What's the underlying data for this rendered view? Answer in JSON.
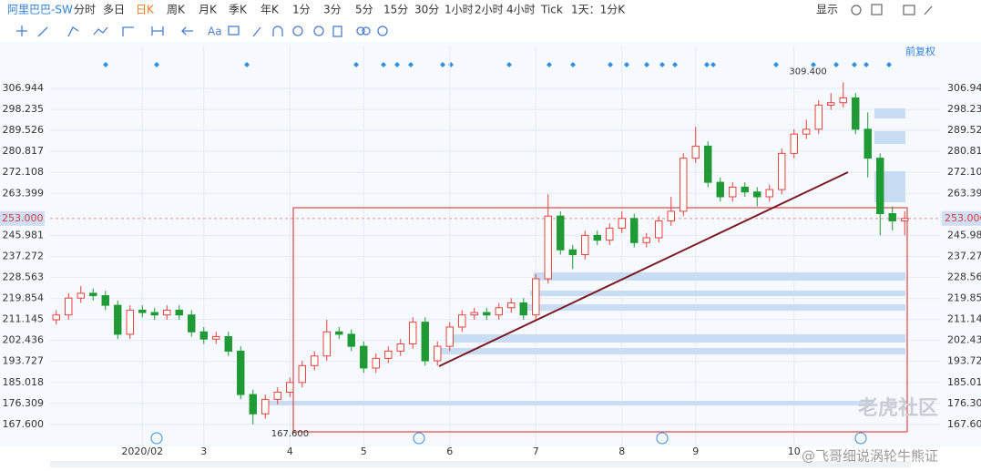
{
  "toolbar": {
    "symbol": "阿里巴巴-SW",
    "periods": [
      "分时",
      "多日",
      "日K",
      "周K",
      "月K",
      "季K",
      "年K",
      "1分",
      "3分",
      "5分",
      "15分",
      "30分",
      "1小时",
      "2小时",
      "4小时",
      "Tick"
    ],
    "active": "日K",
    "range": "1天：1分K",
    "display": "显示"
  },
  "adjust": "前复权",
  "watermark": "老虎社区",
  "credit": "@飞哥细说涡轮牛熊证",
  "chart_data": {
    "type": "candlestick",
    "categories": [
      null,
      null,
      null,
      null,
      null,
      null,
      null,
      "2020/02",
      null,
      null,
      null,
      null,
      "3",
      null,
      null,
      null,
      null,
      null,
      null,
      "4",
      null,
      null,
      null,
      null,
      null,
      "5",
      null,
      null,
      null,
      null,
      null,
      null,
      "6",
      null,
      null,
      null,
      null,
      null,
      null,
      "7",
      null,
      null,
      null,
      null,
      null,
      null,
      "8",
      null,
      null,
      null,
      null,
      null,
      "9",
      null,
      null,
      null,
      null,
      null,
      null,
      null,
      "10",
      null,
      null,
      null,
      null,
      null,
      null,
      null,
      null,
      null
    ],
    "open": [
      211,
      213,
      220,
      222,
      221,
      217,
      205,
      215,
      214,
      213,
      215,
      213,
      206,
      203,
      204,
      198,
      180,
      172,
      178,
      181,
      185,
      192,
      196,
      206,
      205,
      200,
      191,
      195,
      198,
      201,
      210,
      194,
      200,
      208,
      213,
      214,
      213,
      216,
      218,
      213,
      228,
      254,
      240,
      238,
      246,
      244,
      249,
      253,
      243,
      245,
      252,
      256,
      278,
      283,
      268,
      262,
      266,
      264,
      262,
      265,
      280,
      288,
      290,
      300,
      301,
      303,
      290,
      278,
      255,
      252
    ],
    "high": [
      215,
      222,
      225,
      224,
      223,
      219,
      217,
      217,
      216,
      217,
      217,
      215,
      208,
      206,
      206,
      200,
      182,
      180,
      183,
      187,
      194,
      198,
      211,
      208,
      207,
      202,
      197,
      200,
      203,
      212,
      212,
      202,
      210,
      215,
      216,
      216,
      218,
      220,
      220,
      230,
      263,
      256,
      242,
      248,
      248,
      251,
      256,
      255,
      247,
      254,
      262,
      280,
      291,
      285,
      270,
      268,
      268,
      266,
      267,
      282,
      290,
      294,
      302,
      305,
      309.4,
      305,
      297,
      280,
      258,
      256
    ],
    "low": [
      209,
      211,
      218,
      219,
      215,
      203,
      203,
      212,
      211,
      211,
      211,
      204,
      201,
      201,
      196,
      178,
      167.6,
      170,
      176,
      179,
      183,
      190,
      194,
      203,
      198,
      189,
      189,
      193,
      196,
      199,
      192,
      192,
      198,
      206,
      211,
      211,
      211,
      214,
      211,
      211,
      226,
      238,
      232,
      236,
      242,
      242,
      247,
      241,
      241,
      243,
      250,
      254,
      276,
      266,
      260,
      260,
      262,
      258,
      260,
      263,
      278,
      286,
      288,
      298,
      299,
      288,
      270,
      246,
      248,
      246
    ],
    "close": [
      213,
      220,
      222,
      221,
      217,
      205,
      215,
      214,
      213,
      215,
      213,
      206,
      203,
      204,
      198,
      180,
      172,
      178,
      181,
      185,
      192,
      196,
      206,
      205,
      200,
      191,
      195,
      198,
      201,
      210,
      194,
      200,
      208,
      213,
      214,
      213,
      216,
      218,
      213,
      228,
      254,
      240,
      238,
      246,
      244,
      249,
      253,
      243,
      245,
      252,
      256,
      278,
      283,
      268,
      262,
      266,
      264,
      262,
      265,
      280,
      288,
      290,
      300,
      301,
      303,
      290,
      278,
      255,
      252,
      253
    ],
    "up_color": "#e8413d",
    "down_color": "#1f9a34",
    "ylim": [
      158.5,
      324.7
    ],
    "yticks": [
      {
        "value": 167.6,
        "label": "167.600"
      },
      176.309,
      185.018,
      193.727,
      202.436,
      211.145,
      219.854,
      228.563,
      237.272,
      245.981,
      263.399,
      272.108,
      280.817,
      289.526,
      298.235,
      306.944
    ],
    "grid": true,
    "last_price": {
      "value": 253,
      "label": "253.000"
    },
    "high_label": {
      "value": 309.4,
      "label": "309.400"
    },
    "low_label": {
      "value": 167.6,
      "label": "167.600"
    }
  }
}
